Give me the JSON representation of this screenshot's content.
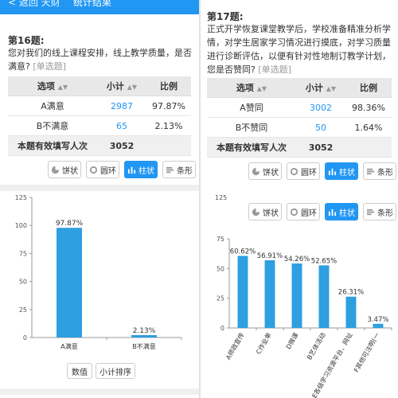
{
  "topbar": {
    "back_label": "< 返回 天财",
    "title": "统计结果"
  },
  "q16": {
    "number": "第16题:",
    "text": "您对我们的线上课程安排，线上教学质量，是否满意?",
    "mode": "[单选题]",
    "table": {
      "headers": [
        "选项",
        "小计",
        "比例"
      ],
      "rows": [
        {
          "option": "A满意",
          "count": "2987",
          "pct": "97.87%"
        },
        {
          "option": "B不满意",
          "count": "65",
          "pct": "2.13%"
        }
      ],
      "total_label": "本题有效填写人次",
      "total": "3052"
    },
    "chart_buttons": [
      "饼状",
      "圆环",
      "柱状",
      "条形"
    ],
    "footer_buttons": [
      "数值",
      "小计排序"
    ]
  },
  "q17": {
    "number": "第17题:",
    "text": "正式开学恢复课堂教学后，学校准备精准分析学情，对学生居家学习情况进行摸底，对学习质量进行诊断评估，以便有针对性地制订教学计划，您是否赞同?",
    "mode": "[单选题]",
    "table": {
      "headers": [
        "选项",
        "小计",
        "比例"
      ],
      "rows": [
        {
          "option": "A赞同",
          "count": "3002",
          "pct": "98.36%"
        },
        {
          "option": "B不赞同",
          "count": "50",
          "pct": "1.64%"
        }
      ],
      "total_label": "本题有效填写人次",
      "total": "3052"
    },
    "chart_buttons": [
      "饼状",
      "圆环",
      "柱状",
      "条形"
    ],
    "chart_buttons_2": [
      "饼状",
      "圆环",
      "柱状",
      "条形"
    ]
  },
  "colors": {
    "accent": "#2196f3",
    "bar": "#2e9fe0"
  },
  "chart_data": [
    {
      "type": "bar",
      "categories": [
        "A满意",
        "B不满意"
      ],
      "values": [
        97.87,
        2.13
      ],
      "labels": [
        "97.87%",
        "2.13%"
      ],
      "ylim": [
        0,
        125
      ],
      "yticks": [
        "0",
        "25",
        "50",
        "75",
        "100",
        "125"
      ],
      "grid": false
    },
    {
      "type": "bar",
      "categories": [
        "A师政宣传",
        "C作业单",
        "D微课",
        "B艺体活动",
        "E各级学习资源平台、网址",
        "F其他可注明(一"
      ],
      "values": [
        60.62,
        56.91,
        54.26,
        52.65,
        26.31,
        3.47
      ],
      "labels": [
        "60.62%",
        "56.91%",
        "54.26%",
        "52.65%",
        "26.31%",
        "3.47%"
      ],
      "ylim": [
        0,
        75
      ],
      "yticks": [
        "0",
        "25",
        "50",
        "75"
      ],
      "top_label": "125",
      "grid": false
    }
  ]
}
